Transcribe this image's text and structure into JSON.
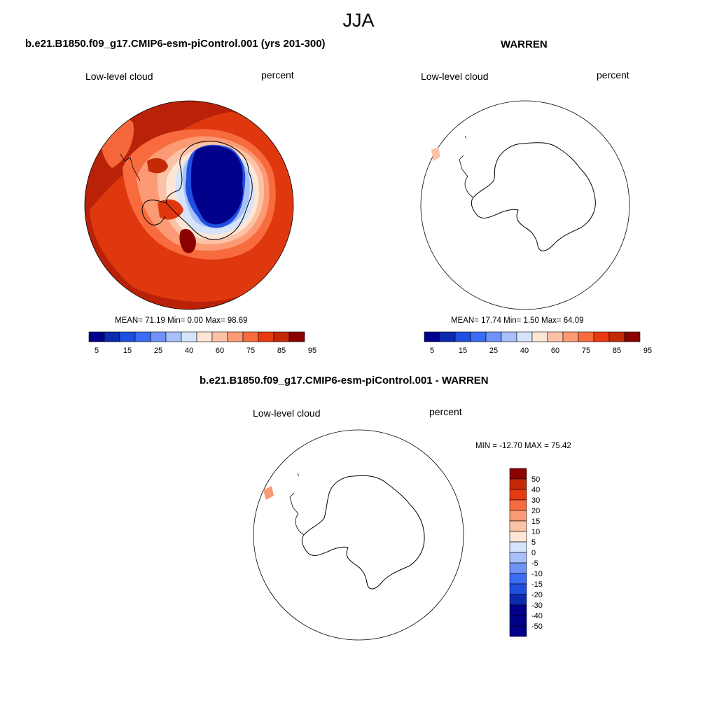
{
  "page": {
    "title": "JJA",
    "colors": {
      "diverging": [
        "#00008b",
        "#0a2bb0",
        "#1f4fe0",
        "#3b6cf5",
        "#6f92f7",
        "#a8c0f9",
        "#d6e4fb",
        "#fde6d6",
        "#fcc2a5",
        "#fb9a74",
        "#f86b3e",
        "#e83a10",
        "#c42a07",
        "#8b0000"
      ]
    }
  },
  "panels": {
    "left": {
      "case": "b.e21.B1850.f09_g17.CMIP6-esm-piControl.001 (yrs 201-300)",
      "variable": "Low-level cloud",
      "units": "percent",
      "stats": "MEAN=  71.19  Min=   0.00  Max=  98.69",
      "colorbar_ticks": [
        "5",
        "15",
        "25",
        "40",
        "60",
        "75",
        "85",
        "95"
      ]
    },
    "right": {
      "case": "WARREN",
      "variable": "Low-level cloud",
      "units": "percent",
      "stats": "MEAN=  17.74  Min=   1.50  Max=  64.09",
      "colorbar_ticks": [
        "5",
        "15",
        "25",
        "40",
        "60",
        "75",
        "85",
        "95"
      ]
    },
    "diff": {
      "case": "b.e21.B1850.f09_g17.CMIP6-esm-piControl.001 - WARREN",
      "variable": "Low-level cloud",
      "units": "percent",
      "stats": "MIN = -12.70 MAX =  75.42",
      "colorbar_ticks": [
        "50",
        "40",
        "30",
        "20",
        "15",
        "10",
        "5",
        "0",
        "-5",
        "-10",
        "-15",
        "-20",
        "-30",
        "-40",
        "-50"
      ]
    }
  }
}
